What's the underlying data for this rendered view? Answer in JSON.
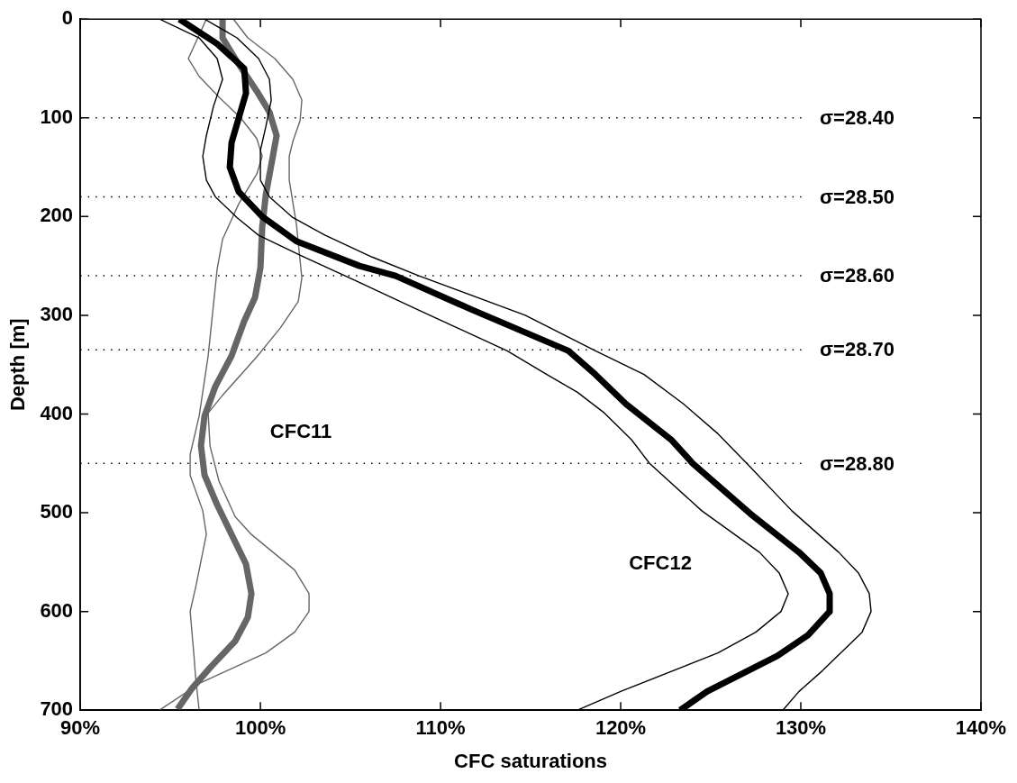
{
  "chart_data": {
    "type": "line",
    "xlabel": "CFC saturations",
    "ylabel": "Depth [m]",
    "xlim": [
      90,
      140
    ],
    "xticks": [
      {
        "value": 90,
        "label": "90%"
      },
      {
        "value": 100,
        "label": "100%"
      },
      {
        "value": 110,
        "label": "110%"
      },
      {
        "value": 120,
        "label": "120%"
      },
      {
        "value": 130,
        "label": "130%"
      },
      {
        "value": 140,
        "label": "140%"
      }
    ],
    "ylim": [
      700,
      0
    ],
    "yticks": [
      0,
      100,
      200,
      300,
      400,
      500,
      600,
      700
    ],
    "series": [
      {
        "color": "#000000",
        "x": [
          95.5,
          97.6,
          99.1,
          99.2,
          98.8,
          98.4,
          98.3,
          98.8,
          100.1,
          102.0,
          105.5,
          107.5,
          111.7,
          117.1,
          118.6,
          120.3,
          122.8,
          124.0,
          127.2,
          129.9,
          131.1,
          131.6,
          131.6,
          130.4,
          128.7,
          124.8,
          123.3
        ],
        "values": [
          0,
          25,
          50,
          75,
          100,
          125,
          150,
          175,
          200,
          225,
          250,
          260,
          294,
          336,
          360,
          390,
          426,
          450,
          501,
          540,
          561,
          582,
          600,
          624,
          645,
          681,
          700
        ]
      },
      {
        "color": "#000000",
        "x": [
          94.4,
          96.6,
          97.6,
          97.9,
          97.4,
          97.0,
          96.8,
          97.0,
          97.5,
          98.7,
          99.9,
          102.3,
          105.3,
          108.7,
          113.7,
          115.9,
          117.6,
          119.1,
          120.6,
          121.6,
          124.5,
          127.7,
          128.8,
          129.3,
          128.9,
          127.5,
          125.4,
          120.0,
          117.6
        ],
        "values": [
          0,
          19,
          40,
          61,
          88,
          118,
          139,
          163,
          180,
          201,
          219,
          240,
          265,
          294,
          336,
          360,
          378,
          399,
          426,
          450,
          498,
          540,
          561,
          582,
          600,
          621,
          642,
          681,
          700
        ]
      },
      {
        "color": "#000000",
        "x": [
          96.9,
          98.7,
          99.9,
          100.5,
          100.6,
          100.3,
          100.0,
          100.0,
          100.5,
          101.8,
          103.6,
          106.2,
          108.8,
          114.7,
          118.6,
          121.3,
          123.5,
          125.4,
          127.0,
          129.5,
          132.1,
          133.2,
          133.8,
          133.9,
          133.4,
          131.2,
          129.9,
          129.0
        ],
        "values": [
          0,
          19,
          40,
          61,
          82,
          109,
          133,
          163,
          180,
          201,
          219,
          241,
          260,
          300,
          336,
          360,
          390,
          420,
          450,
          498,
          540,
          561,
          582,
          600,
          621,
          660,
          681,
          700
        ]
      },
      {
        "color": "#666666",
        "x": [
          97.9,
          97.9,
          98.7,
          99.8,
          100.5,
          100.9,
          100.6,
          100.3,
          100.1,
          100.0,
          99.7,
          99.1,
          98.4,
          97.5,
          96.9,
          96.7,
          96.9,
          97.6,
          98.4,
          99.2,
          99.5,
          99.3,
          98.6,
          97.2,
          96.2,
          95.4
        ],
        "values": [
          0,
          19,
          43,
          73,
          94,
          118,
          148,
          178,
          211,
          252,
          282,
          306,
          341,
          372,
          402,
          432,
          462,
          492,
          522,
          552,
          582,
          606,
          630,
          657,
          678,
          699
        ]
      },
      {
        "color": "#666666",
        "x": [
          97.0,
          96.6,
          96.0,
          96.6,
          97.7,
          98.9,
          99.8,
          100.1,
          99.8,
          98.8,
          97.9,
          97.6,
          97.1,
          96.6,
          96.1,
          96.1,
          96.8,
          97.0,
          96.4,
          96.1,
          96.3,
          96.4,
          96.6
        ],
        "values": [
          0,
          16,
          40,
          58,
          79,
          100,
          121,
          139,
          157,
          187,
          223,
          253,
          341,
          402,
          441,
          462,
          498,
          522,
          576,
          600,
          642,
          666,
          700
        ]
      },
      {
        "color": "#666666",
        "x": [
          98.5,
          99.3,
          100.8,
          101.8,
          102.3,
          102.2,
          101.8,
          101.6,
          101.6,
          102.0,
          102.3,
          102.1,
          101.1,
          99.8,
          97.9,
          97.1,
          97.2,
          97.7,
          98.6,
          99.5,
          101.9,
          102.7,
          102.7,
          101.9,
          100.3,
          96.7,
          94.4
        ],
        "values": [
          0,
          19,
          40,
          61,
          82,
          103,
          124,
          139,
          163,
          208,
          262,
          286,
          313,
          342,
          381,
          399,
          432,
          468,
          504,
          522,
          558,
          582,
          600,
          621,
          642,
          672,
          700
        ]
      }
    ],
    "ref_lines": [
      {
        "axis": "y",
        "value": 100,
        "color": "#000000",
        "line_style": "dotted"
      },
      {
        "axis": "y",
        "value": 180,
        "color": "#000000",
        "line_style": "dotted"
      },
      {
        "axis": "y",
        "value": 260,
        "color": "#000000",
        "line_style": "dotted"
      },
      {
        "axis": "y",
        "value": 335,
        "color": "#000000",
        "line_style": "dotted"
      },
      {
        "axis": "y",
        "value": 450,
        "color": "#000000",
        "line_style": "dotted"
      }
    ],
    "annotations": [
      "σ=28.40",
      "σ=28.50",
      "σ=28.60",
      "σ=28.70",
      "σ=28.80",
      "CFC11",
      "CFC12"
    ]
  }
}
